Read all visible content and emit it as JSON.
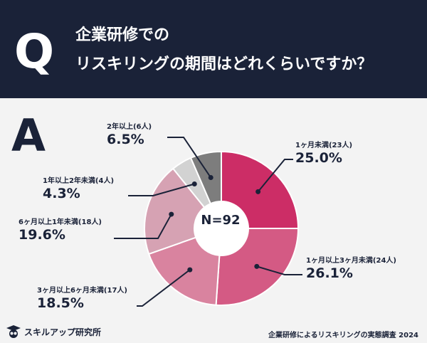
{
  "header": {
    "q_mark": "Q",
    "title_line1": "企業研修での",
    "title_line2": "リスキリングの期間はどれくらいですか？"
  },
  "answer_mark": "A",
  "chart_data": {
    "type": "pie",
    "center_label": "N=92",
    "series": [
      {
        "name": "1ヶ月未満(23人)",
        "value": 25.0,
        "label": "25.0%",
        "color": "#cc2d66"
      },
      {
        "name": "1ヶ月以上3ヶ月未満(24人)",
        "value": 26.1,
        "label": "26.1%",
        "color": "#d45a84"
      },
      {
        "name": "3ヶ月以上6ヶ月未満(17人)",
        "value": 18.5,
        "label": "18.5%",
        "color": "#d9839f"
      },
      {
        "name": "6ヶ月以上1年未満(18人)",
        "value": 19.6,
        "label": "19.6%",
        "color": "#d6a2b3"
      },
      {
        "name": "1年以上2年未満(4人)",
        "value": 4.3,
        "label": "4.3%",
        "color": "#d2d2d2"
      },
      {
        "name": "2年以上(6人)",
        "value": 6.5,
        "label": "6.5%",
        "color": "#7d7d7d"
      }
    ]
  },
  "footer": {
    "logo_text": "スキルアップ研究所",
    "source": "企業研修によるリスキリングの実態調査 2024"
  }
}
